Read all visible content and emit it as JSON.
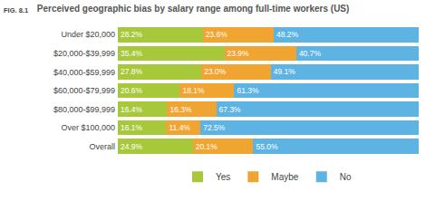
{
  "chart_data": {
    "type": "bar",
    "title": "Perceived geographic bias by salary range among full-time workers (US)",
    "annotations": [
      "FIG. 8.1"
    ],
    "orientation": "horizontal",
    "stacked": true,
    "data_labels": true,
    "tick_labels": "y",
    "legend": "bottom",
    "grid": false,
    "xlim": [
      0,
      100
    ],
    "xticks": [],
    "categories": [
      "Under $20,000",
      "$20,000-$39,999",
      "$40,000-$59,999",
      "$60,000-$79,999",
      "$80,000-$99,999",
      "Over $100,000",
      "Overall"
    ],
    "series": [
      {
        "name": "Yes",
        "color": "#a8c83c",
        "values": [
          28.2,
          35.4,
          27.8,
          20.6,
          16.4,
          16.1,
          24.9
        ],
        "value_labels": [
          "28.2%",
          "35.4%",
          "27.8%",
          "20.6%",
          "16.4%",
          "16.1%",
          "24.9%"
        ]
      },
      {
        "name": "Maybe",
        "color": "#f0a431",
        "values": [
          23.6,
          23.9,
          23.0,
          18.1,
          16.3,
          11.4,
          20.1
        ],
        "value_labels": [
          "23.6%",
          "23.9%",
          "23.0%",
          "18.1%",
          "16.3%",
          "11.4%",
          "20.1%"
        ]
      },
      {
        "name": "No",
        "color": "#5db3e2",
        "values": [
          48.2,
          40.7,
          49.1,
          61.3,
          67.3,
          72.5,
          55.0
        ],
        "value_labels": [
          "48.2%",
          "40.7%",
          "49.1%",
          "61.3%",
          "67.3%",
          "72.5%",
          "55.0%"
        ]
      }
    ]
  }
}
